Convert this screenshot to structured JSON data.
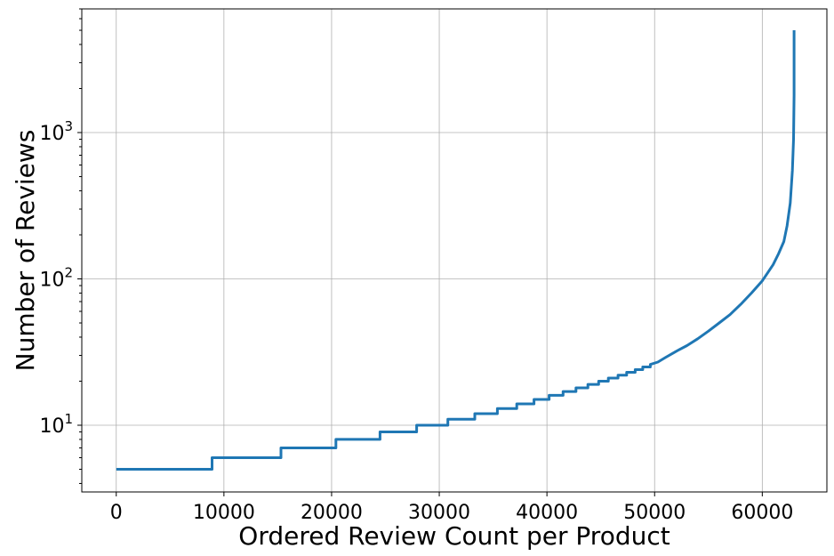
{
  "chart_data": {
    "type": "line",
    "xlabel": "Ordered Review Count per Product",
    "ylabel": "Number of Reviews",
    "title": "",
    "xlim": [
      -3200,
      66000
    ],
    "ylim": [
      3.5,
      7000
    ],
    "yscale": "log",
    "grid": true,
    "xticks": [
      0,
      10000,
      20000,
      30000,
      40000,
      50000,
      60000
    ],
    "xtick_labels": [
      "0",
      "10000",
      "20000",
      "30000",
      "40000",
      "50000",
      "60000"
    ],
    "yticks": [
      10,
      100,
      1000
    ],
    "ytick_labels": [
      {
        "base": "10",
        "exp": "1"
      },
      {
        "base": "10",
        "exp": "2"
      },
      {
        "base": "10",
        "exp": "3"
      }
    ],
    "series": [
      {
        "color": "#1f77b4",
        "x": [
          0,
          8900,
          8900,
          15300,
          15300,
          20400,
          20400,
          24500,
          24500,
          27900,
          27900,
          30800,
          30800,
          33300,
          33300,
          35400,
          35400,
          37200,
          37200,
          38800,
          38800,
          40200,
          40200,
          41500,
          41500,
          42700,
          42700,
          43800,
          43800,
          44800,
          44800,
          45700,
          45700,
          46600,
          46600,
          47400,
          47400,
          48200,
          48200,
          48900,
          48900,
          49600,
          49600,
          50300,
          51000,
          52000,
          53000,
          54000,
          55000,
          56000,
          57000,
          58000,
          59000,
          60000,
          60500,
          61000,
          61500,
          62000,
          62300,
          62600,
          62800,
          62900,
          62950,
          62950
        ],
        "y": [
          5,
          5,
          6,
          6,
          7,
          7,
          8,
          8,
          9,
          9,
          10,
          10,
          11,
          11,
          12,
          12,
          13,
          13,
          14,
          14,
          15,
          15,
          16,
          16,
          17,
          17,
          18,
          18,
          19,
          19,
          20,
          20,
          21,
          21,
          22,
          22,
          23,
          23,
          24,
          24,
          25,
          25,
          26,
          27,
          29,
          32,
          35,
          39,
          44,
          50,
          57,
          67,
          80,
          97,
          110,
          125,
          148,
          180,
          230,
          330,
          550,
          900,
          1800,
          5000
        ]
      }
    ]
  }
}
